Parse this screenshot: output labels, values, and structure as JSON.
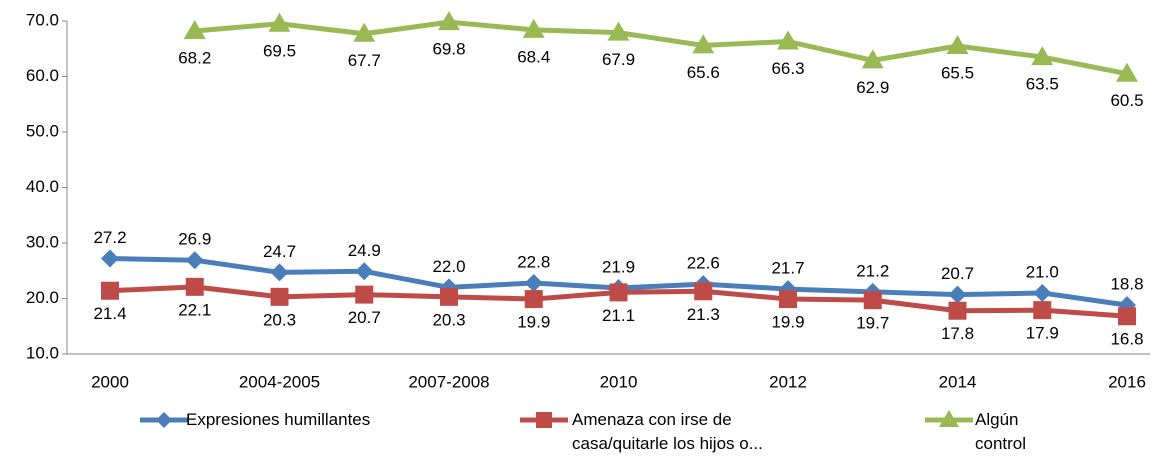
{
  "chart_data": {
    "type": "line",
    "categories": [
      "2000",
      null,
      "2004-2005",
      null,
      "2007-2008",
      null,
      "2010",
      null,
      "2012",
      null,
      "2014",
      null,
      "2016"
    ],
    "series": [
      {
        "name": "Expresiones humillantes",
        "color": "#4a7ebb",
        "marker": "diamond",
        "values": [
          27.2,
          26.9,
          24.7,
          24.9,
          22.0,
          22.8,
          21.9,
          22.6,
          21.7,
          21.2,
          20.7,
          21.0,
          18.8
        ],
        "value_labels": [
          "27.2",
          "26.9",
          "24.7",
          "24.9",
          "22.0",
          "22.8",
          "21.9",
          "22.6",
          "21.7",
          "21.2",
          "20.7",
          "21.0",
          "18.8"
        ]
      },
      {
        "name": "Amenaza con irse de casa/quitarle los hijos o...",
        "color": "#be4b48",
        "marker": "square",
        "values": [
          21.4,
          22.1,
          20.3,
          20.7,
          20.3,
          19.9,
          21.1,
          21.3,
          19.9,
          19.7,
          17.8,
          17.9,
          16.8
        ],
        "value_labels": [
          "21.4",
          "22.1",
          "20.3",
          "20.7",
          "20.3",
          "19.9",
          "21.1",
          "21.3",
          "19.9",
          "19.7",
          "17.8",
          "17.9",
          "16.8"
        ]
      },
      {
        "name": "Algún control",
        "color": "#98b954",
        "marker": "triangle",
        "values": [
          null,
          68.2,
          69.5,
          67.7,
          69.8,
          68.4,
          67.9,
          65.6,
          66.3,
          62.9,
          65.5,
          63.5,
          60.5
        ],
        "value_labels": [
          null,
          "68.2",
          "69.5",
          "67.7",
          "69.8",
          "68.4",
          "67.9",
          "65.6",
          "66.3",
          "62.9",
          "65.5",
          "63.5",
          "60.5"
        ]
      }
    ],
    "ylim": [
      10,
      70
    ],
    "yticks": [
      {
        "value": 10,
        "label": "10.0"
      },
      {
        "value": 20,
        "label": "20.0"
      },
      {
        "value": 30,
        "label": "30.0"
      },
      {
        "value": 40,
        "label": "40.0"
      },
      {
        "value": 50,
        "label": "50.0"
      },
      {
        "value": 60,
        "label": "60.0"
      },
      {
        "value": 70,
        "label": "70.0"
      }
    ],
    "grid": false
  }
}
